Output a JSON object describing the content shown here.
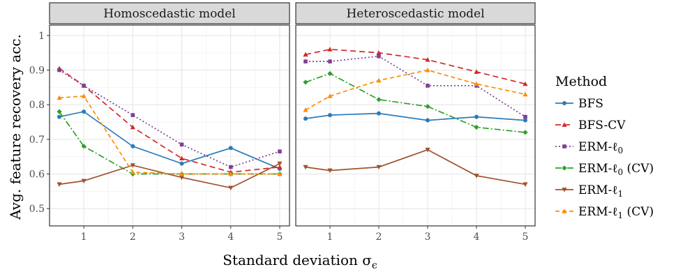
{
  "chart_data": {
    "type": "line",
    "ylabel": "Avg. feature recovery acc.",
    "xlabel": "Standard deviation  σ",
    "xlabel_subscript": "ϵ",
    "x": [
      0.5,
      1,
      2,
      3,
      4,
      5
    ],
    "xticks": [
      "1",
      "2",
      "3",
      "4",
      "5"
    ],
    "yticks": [
      "0.5",
      "0.6",
      "0.7",
      "0.8",
      "0.9",
      "1"
    ],
    "ylim": [
      0.45,
      1.03
    ],
    "xlim": [
      0.3,
      5.2
    ],
    "grid": true,
    "legend": {
      "title": "Method",
      "placement": "right",
      "entries": [
        {
          "name": "BFS",
          "sub": ""
        },
        {
          "name": "BFS-CV",
          "sub": ""
        },
        {
          "name": "ERM-ℓ",
          "sub": "0"
        },
        {
          "name": "ERM-ℓ",
          "sub": "0",
          "suffix": " (CV)"
        },
        {
          "name": "ERM-ℓ",
          "sub": "1"
        },
        {
          "name": "ERM-ℓ",
          "sub": "1",
          "suffix": " (CV)"
        }
      ]
    },
    "series_styles": [
      {
        "color": "#2b7bba",
        "dash": "",
        "marker": "circle"
      },
      {
        "color": "#d62728",
        "dash": "8,5",
        "marker": "triangle-up"
      },
      {
        "color": "#7f3f98",
        "dash": "2,3",
        "marker": "square"
      },
      {
        "color": "#2ca02c",
        "dash": "9,3,2,3",
        "marker": "diamond"
      },
      {
        "color": "#a0522d",
        "dash": "",
        "marker": "triangle-down"
      },
      {
        "color": "#ff8c00",
        "dash": "6,4",
        "marker": "triangle-up"
      }
    ],
    "panels": [
      {
        "title": "Homoscedastic model",
        "series": [
          {
            "values": [
              0.765,
              0.78,
              0.68,
              0.63,
              0.675,
              0.615
            ]
          },
          {
            "values": [
              0.905,
              0.855,
              0.735,
              0.645,
              0.605,
              0.62
            ]
          },
          {
            "values": [
              0.9,
              0.855,
              0.77,
              0.685,
              0.62,
              0.665
            ]
          },
          {
            "values": [
              0.78,
              0.68,
              0.6,
              0.6,
              0.6,
              0.6
            ]
          },
          {
            "values": [
              0.57,
              0.58,
              0.625,
              0.59,
              0.56,
              0.63
            ]
          },
          {
            "values": [
              0.82,
              0.825,
              0.605,
              0.6,
              0.6,
              0.6
            ]
          }
        ]
      },
      {
        "title": "Heteroscedastic model",
        "series": [
          {
            "values": [
              0.76,
              0.77,
              0.775,
              0.755,
              0.765,
              0.755
            ]
          },
          {
            "values": [
              0.945,
              0.96,
              0.95,
              0.93,
              0.895,
              0.86
            ]
          },
          {
            "values": [
              0.925,
              0.925,
              0.94,
              0.855,
              0.855,
              0.765
            ]
          },
          {
            "values": [
              0.865,
              0.89,
              0.815,
              0.795,
              0.735,
              0.72
            ]
          },
          {
            "values": [
              0.62,
              0.61,
              0.62,
              0.67,
              0.595,
              0.57
            ]
          },
          {
            "values": [
              0.785,
              0.825,
              0.87,
              0.9,
              0.86,
              0.83
            ]
          }
        ]
      }
    ]
  }
}
